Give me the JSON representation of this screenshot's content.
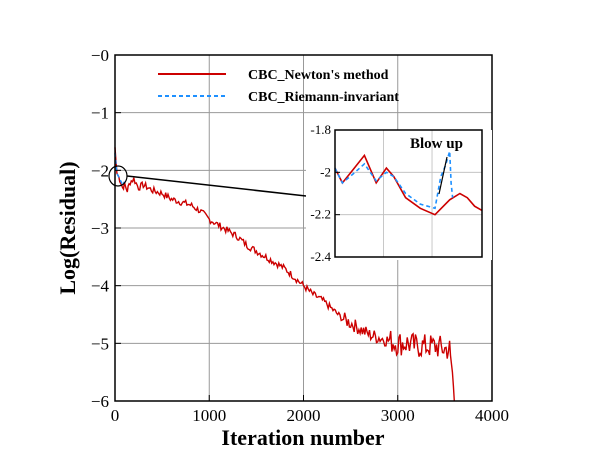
{
  "chart_data": {
    "type": "line",
    "title": "",
    "xlabel": "Iteration number",
    "ylabel": "Log(Residual)",
    "xlim": [
      0,
      4000
    ],
    "ylim": [
      -6,
      0
    ],
    "xticks": [
      0,
      1000,
      2000,
      3000,
      4000
    ],
    "yticks": [
      0,
      -1,
      -2,
      -3,
      -4,
      -5,
      -6
    ],
    "xtick_labels": [
      "0",
      "1000",
      "2000",
      "3000",
      "4000"
    ],
    "ytick_labels": [
      "−0",
      "−1",
      "−2",
      "−3",
      "−4",
      "−5",
      "−6"
    ],
    "grid": true,
    "legend_position": "top-center",
    "series": [
      {
        "name": "CBC_Newton's method",
        "color": "#cc0000",
        "style": "solid",
        "x": [
          0,
          20,
          50,
          80,
          100,
          130,
          160,
          200,
          250,
          300,
          400,
          500,
          600,
          700,
          800,
          900,
          1000,
          1100,
          1200,
          1300,
          1400,
          1500,
          1600,
          1700,
          1800,
          1900,
          2000,
          2100,
          2200,
          2300,
          2400,
          2500,
          2600,
          2700,
          2800,
          2900,
          3000,
          3100,
          3200,
          3300,
          3400,
          3500,
          3550,
          3580,
          3600
        ],
        "y": [
          -1.6,
          -2.05,
          -2.15,
          -2.3,
          -2.25,
          -2.35,
          -2.2,
          -2.15,
          -2.3,
          -2.25,
          -2.35,
          -2.4,
          -2.5,
          -2.55,
          -2.6,
          -2.7,
          -2.85,
          -2.95,
          -3.05,
          -3.15,
          -3.3,
          -3.4,
          -3.5,
          -3.6,
          -3.7,
          -3.85,
          -4.0,
          -4.15,
          -4.25,
          -4.4,
          -4.55,
          -4.65,
          -4.75,
          -4.85,
          -4.9,
          -4.95,
          -5.0,
          -5.0,
          -5.05,
          -5.05,
          -5.05,
          -5.1,
          -5.1,
          -5.5,
          -6.0
        ]
      },
      {
        "name": "CBC_Riemann-invariant",
        "color": "#1e90ff",
        "style": "dashed",
        "x": [
          0,
          20,
          50,
          80,
          100
        ],
        "y": [
          -1.7,
          -2.05,
          -2.15,
          -2.25,
          -2.2
        ]
      }
    ],
    "inset": {
      "xlim": [
        0,
        100
      ],
      "ylim": [
        -2.4,
        -1.8
      ],
      "yticks": [
        -1.8,
        -2,
        -2.2,
        -2.4
      ],
      "ytick_labels": [
        "-1.8",
        "-2",
        "-2.2",
        "-2.4"
      ],
      "annotation": "Blow up",
      "series": [
        {
          "name": "CBC_Newton's method",
          "x": [
            0,
            5,
            12,
            20,
            28,
            35,
            40,
            48,
            58,
            68,
            78,
            85,
            90,
            95,
            100
          ],
          "y": [
            -1.98,
            -2.05,
            -1.99,
            -1.92,
            -2.05,
            -1.98,
            -2.02,
            -2.12,
            -2.17,
            -2.2,
            -2.13,
            -2.1,
            -2.12,
            -2.16,
            -2.18
          ]
        },
        {
          "name": "CBC_Riemann-invariant",
          "x": [
            0,
            5,
            12,
            20,
            28,
            35,
            40,
            48,
            58,
            68,
            72,
            75,
            78,
            79,
            80
          ],
          "y": [
            -1.98,
            -2.05,
            -2.01,
            -1.96,
            -2.04,
            -2.0,
            -2.02,
            -2.1,
            -2.15,
            -2.17,
            -2.02,
            -1.97,
            -1.9,
            -2.05,
            -2.12
          ]
        }
      ]
    }
  }
}
